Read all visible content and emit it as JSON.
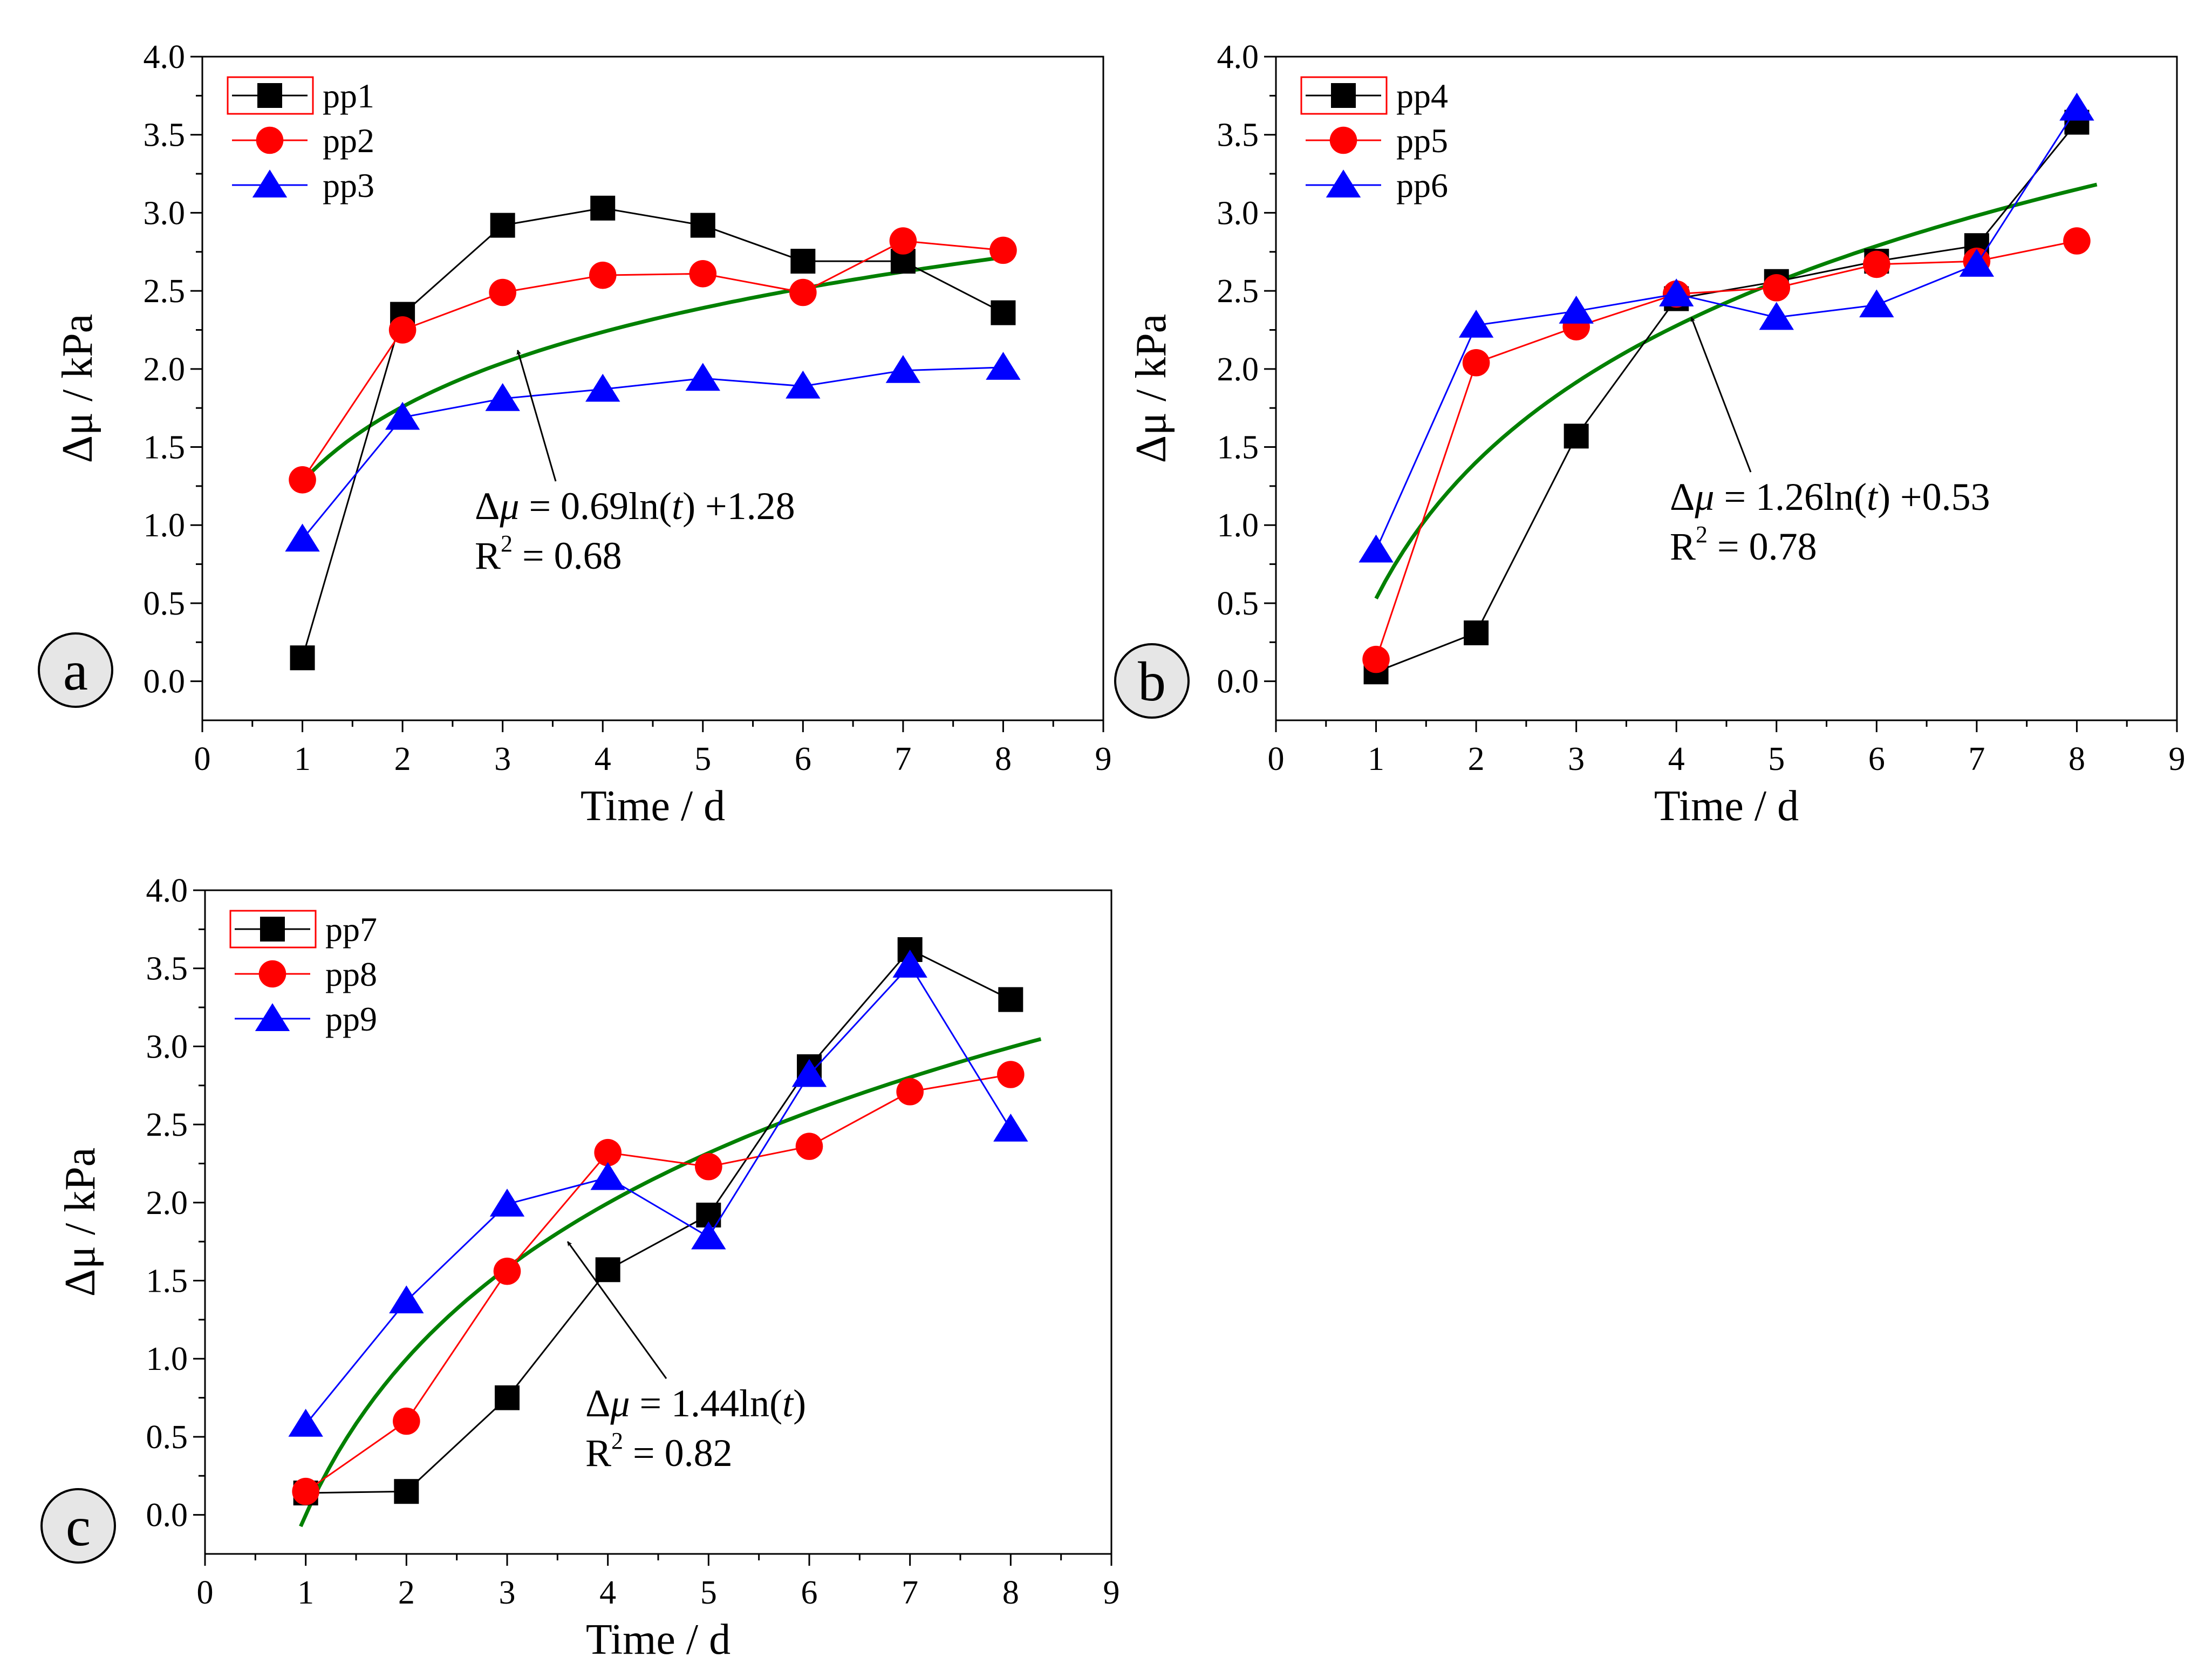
{
  "chart_data": [
    {
      "type": "line",
      "panel_label": "a",
      "xlabel": "Time / d",
      "ylabel": "Δμ / kPa",
      "xlim": [
        0,
        9
      ],
      "ylim": [
        -0.25,
        4.0
      ],
      "xticks": [
        0,
        1,
        2,
        3,
        4,
        5,
        6,
        7,
        8,
        9
      ],
      "yticks": [
        0.0,
        0.5,
        1.0,
        1.5,
        2.0,
        2.5,
        3.0,
        3.5,
        4.0
      ],
      "grid": false,
      "legend_position": "top-left",
      "x": [
        1,
        2,
        3,
        4,
        5,
        6,
        7,
        8
      ],
      "series": [
        {
          "name": "pp1",
          "marker": "square",
          "color": "#000000",
          "values": [
            0.15,
            2.35,
            2.92,
            3.03,
            2.92,
            2.69,
            2.69,
            2.36
          ]
        },
        {
          "name": "pp2",
          "marker": "circle",
          "color": "#ff0000",
          "values": [
            1.29,
            2.25,
            2.49,
            2.6,
            2.61,
            2.49,
            2.82,
            2.76
          ]
        },
        {
          "name": "pp3",
          "marker": "triangle",
          "color": "#0000ff",
          "values": [
            0.91,
            1.69,
            1.81,
            1.87,
            1.94,
            1.89,
            1.99,
            2.01
          ]
        }
      ],
      "fit": {
        "a": 0.69,
        "b": 1.28,
        "x_range": [
          1,
          8
        ],
        "color": "#008000"
      },
      "annotation": {
        "equation_lead": "Δ",
        "equation_var": "μ",
        "equation_mid": " = 0.69ln(",
        "equation_t": "t",
        "equation_tail": ") +1.28",
        "r_label": "R",
        "r_sup": "2",
        "r_value": " = 0.68",
        "arrow_tip": [
          3.15,
          2.12
        ]
      }
    },
    {
      "type": "line",
      "panel_label": "b",
      "xlabel": "Time / d",
      "ylabel": "Δμ / kPa",
      "xlim": [
        0,
        9
      ],
      "ylim": [
        -0.25,
        4.0
      ],
      "xticks": [
        0,
        1,
        2,
        3,
        4,
        5,
        6,
        7,
        8,
        9
      ],
      "yticks": [
        0.0,
        0.5,
        1.0,
        1.5,
        2.0,
        2.5,
        3.0,
        3.5,
        4.0
      ],
      "grid": false,
      "legend_position": "top-left",
      "x": [
        1,
        2,
        3,
        4,
        5,
        6,
        7,
        8
      ],
      "series": [
        {
          "name": "pp4",
          "marker": "square",
          "color": "#000000",
          "values": [
            0.06,
            0.31,
            1.57,
            2.45,
            2.56,
            2.69,
            2.79,
            3.58
          ]
        },
        {
          "name": "pp5",
          "marker": "circle",
          "color": "#ff0000",
          "values": [
            0.14,
            2.04,
            2.27,
            2.48,
            2.52,
            2.67,
            2.69,
            2.82
          ]
        },
        {
          "name": "pp6",
          "marker": "triangle",
          "color": "#0000ff",
          "values": [
            0.84,
            2.28,
            2.37,
            2.48,
            2.33,
            2.41,
            2.67,
            3.67
          ]
        }
      ],
      "fit": {
        "a": 1.26,
        "b": 0.53,
        "x_range": [
          1,
          8.2
        ],
        "color": "#008000"
      },
      "annotation": {
        "equation_lead": "Δ",
        "equation_var": "μ",
        "equation_mid": " = 1.26ln(",
        "equation_t": "t",
        "equation_tail": ") +0.53",
        "r_label": "R",
        "r_sup": "2",
        "r_value": " = 0.78",
        "arrow_tip": [
          4.15,
          2.33
        ]
      }
    },
    {
      "type": "line",
      "panel_label": "c",
      "xlabel": "Time / d",
      "ylabel": "Δμ / kPa",
      "xlim": [
        0,
        9
      ],
      "ylim": [
        -0.25,
        4.0
      ],
      "xticks": [
        0,
        1,
        2,
        3,
        4,
        5,
        6,
        7,
        8,
        9
      ],
      "yticks": [
        0.0,
        0.5,
        1.0,
        1.5,
        2.0,
        2.5,
        3.0,
        3.5,
        4.0
      ],
      "grid": false,
      "legend_position": "top-left",
      "x": [
        1,
        2,
        3,
        4,
        5,
        6,
        7,
        8
      ],
      "series": [
        {
          "name": "pp7",
          "marker": "square",
          "color": "#000000",
          "values": [
            0.14,
            0.15,
            0.75,
            1.57,
            1.92,
            2.87,
            3.62,
            3.3
          ]
        },
        {
          "name": "pp8",
          "marker": "circle",
          "color": "#ff0000",
          "values": [
            0.15,
            0.6,
            1.56,
            2.32,
            2.23,
            2.36,
            2.71,
            2.82
          ]
        },
        {
          "name": "pp9",
          "marker": "triangle",
          "color": "#0000ff",
          "values": [
            0.58,
            1.37,
            1.99,
            2.16,
            1.78,
            2.82,
            3.52,
            2.47
          ]
        }
      ],
      "fit": {
        "a": 1.44,
        "b": 0.0,
        "x_range": [
          0.95,
          8.3
        ],
        "color": "#008000"
      },
      "annotation": {
        "equation_lead": "Δ",
        "equation_var": "μ",
        "equation_mid": " = 1.44ln(",
        "equation_t": "t",
        "equation_tail": ")",
        "r_label": "R",
        "r_sup": "2",
        "r_value": " = 0.82",
        "arrow_tip": [
          3.6,
          1.75
        ]
      }
    }
  ]
}
